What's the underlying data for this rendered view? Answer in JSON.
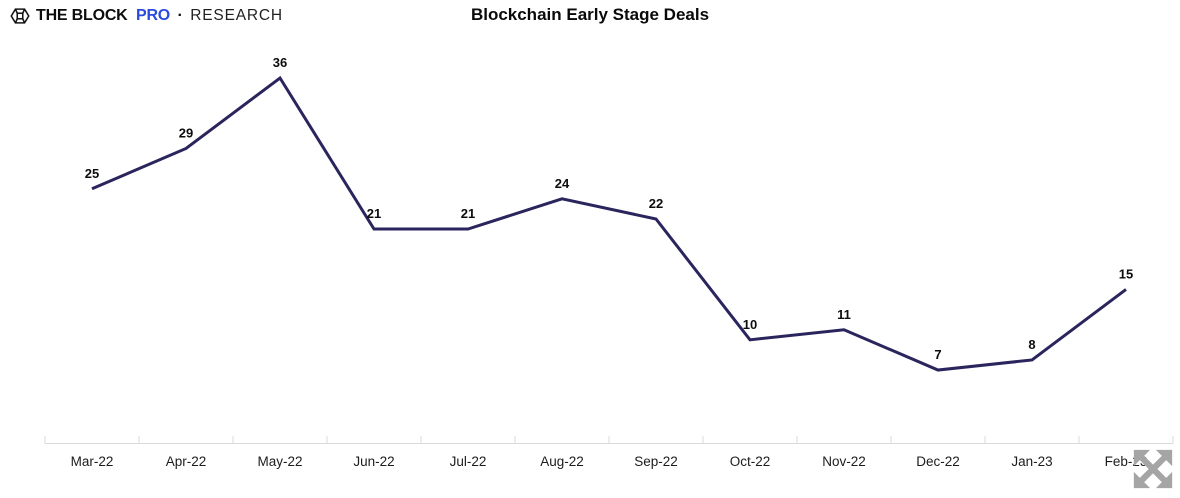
{
  "header": {
    "logo": {
      "brand": "THE BLOCK",
      "pro": "PRO",
      "separator": "·",
      "suffix": "RESEARCH",
      "pro_color": "#2b4bdf",
      "icon": "block-cube-hexagon-icon"
    },
    "title": "Blockchain Early Stage Deals"
  },
  "chart_data": {
    "type": "line",
    "title": "Blockchain Early Stage Deals",
    "categories": [
      "Mar-22",
      "Apr-22",
      "May-22",
      "Jun-22",
      "Jul-22",
      "Aug-22",
      "Sep-22",
      "Oct-22",
      "Nov-22",
      "Dec-22",
      "Jan-23",
      "Feb-23"
    ],
    "values": [
      25,
      29,
      36,
      21,
      21,
      24,
      22,
      10,
      11,
      7,
      8,
      15
    ],
    "xlabel": "",
    "ylabel": "",
    "ylim": [
      0,
      40
    ],
    "grid": false,
    "legend": false,
    "data_labels": true,
    "line_color": "#2a255c",
    "line_width": 3,
    "axis_color": "#dadada",
    "data_label_color": "#0d0d0d",
    "tick_label_color": "#1c1c1c"
  },
  "controls": {
    "expand_icon": "expand-arrows-icon",
    "expand_color": "#a5a5a5"
  }
}
